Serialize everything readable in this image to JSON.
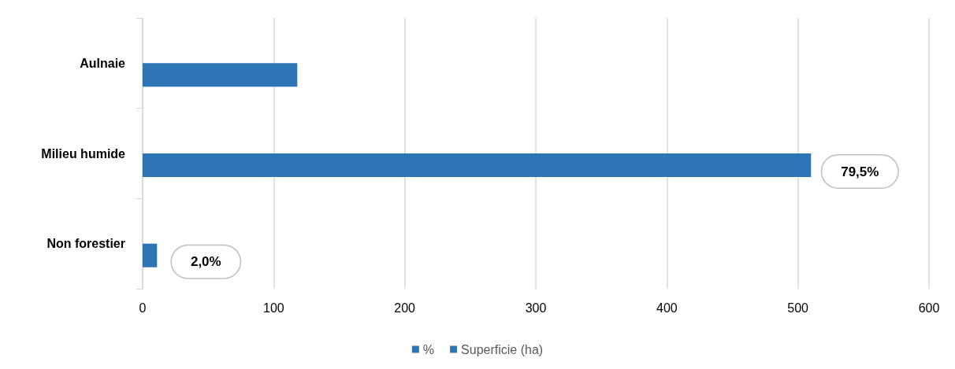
{
  "chart_data": {
    "type": "bar",
    "orientation": "horizontal",
    "categories": [
      "Aulnaie",
      "Milieu humide",
      "Non forestier"
    ],
    "series": [
      {
        "name": "%",
        "color": "#2e75b6",
        "values": [
          null,
          null,
          null
        ]
      },
      {
        "name": "Superficie (ha)",
        "color": "#2e75b6",
        "values": [
          118,
          510,
          11
        ]
      }
    ],
    "xlim": [
      0,
      600
    ],
    "xticks": [
      0,
      100,
      200,
      300,
      400,
      500,
      600
    ],
    "grid": "x",
    "legend": "bottom",
    "annotations": [
      {
        "text": "79,5%",
        "x": 510,
        "y": "Milieu humide"
      },
      {
        "text": "2,0%",
        "x": 11,
        "y": "Non forestier"
      }
    ]
  }
}
